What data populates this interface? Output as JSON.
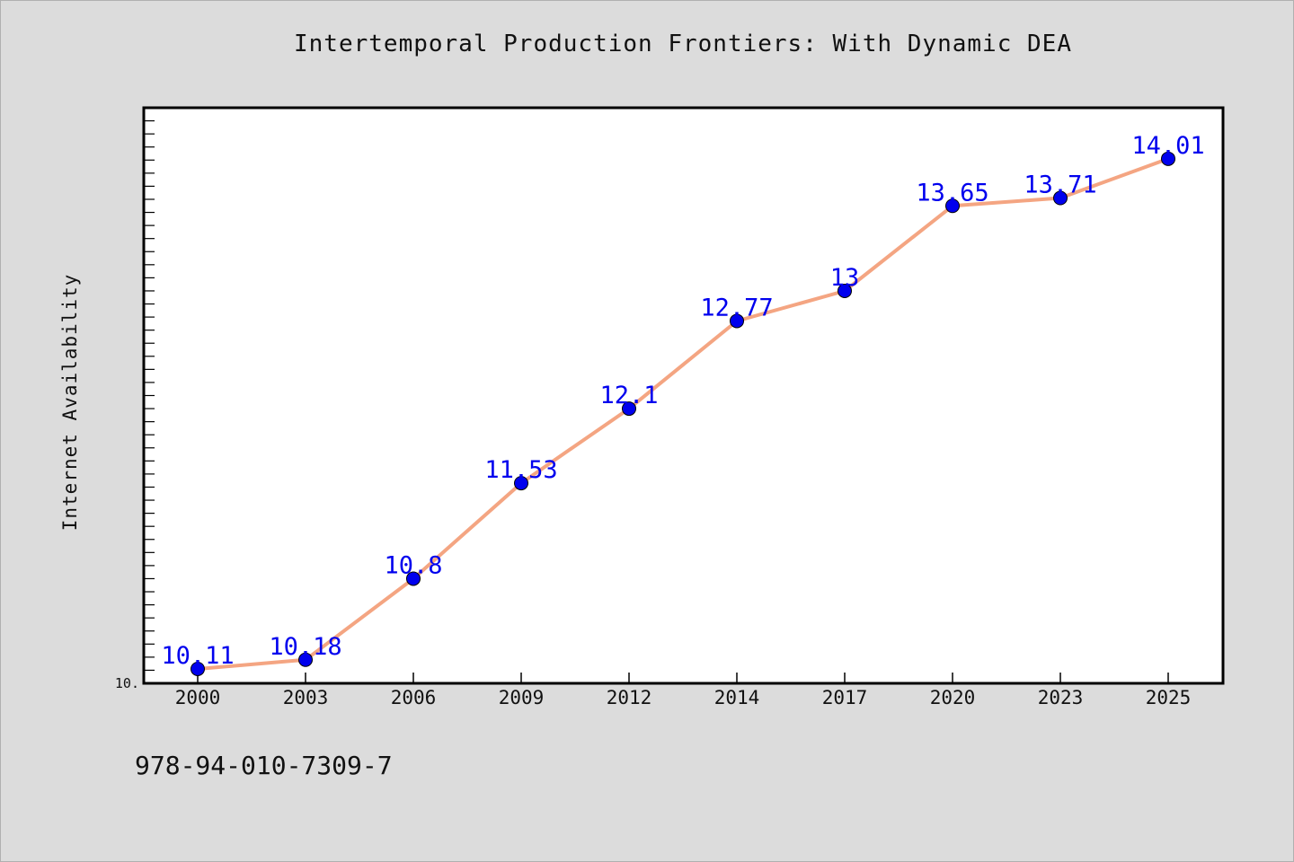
{
  "chart_data": {
    "type": "line",
    "title": "Intertemporal Production Frontiers: With Dynamic DEA",
    "xlabel": "",
    "ylabel": "Internet Availability",
    "x": [
      "2000",
      "2003",
      "2006",
      "2009",
      "2012",
      "2014",
      "2017",
      "2020",
      "2023",
      "2025"
    ],
    "series": [
      {
        "values": [
          10.11,
          10.18,
          10.8,
          11.53,
          12.1,
          12.77,
          13,
          13.65,
          13.71,
          14.01
        ],
        "labels": [
          "10.11",
          "10.18",
          "10.8",
          "11.53",
          "12.1",
          "12.77",
          "13",
          "13.65",
          "13.71",
          "14.01"
        ]
      }
    ],
    "y_tick_labels": [
      {
        "value": 10,
        "label": "10."
      }
    ],
    "ylim": [
      10,
      14.4
    ],
    "grid": false,
    "line_color": "#f4a582",
    "marker_color": "#0000ee",
    "label_color": "#0000ee"
  },
  "footnote": "978-94-010-7309-7"
}
